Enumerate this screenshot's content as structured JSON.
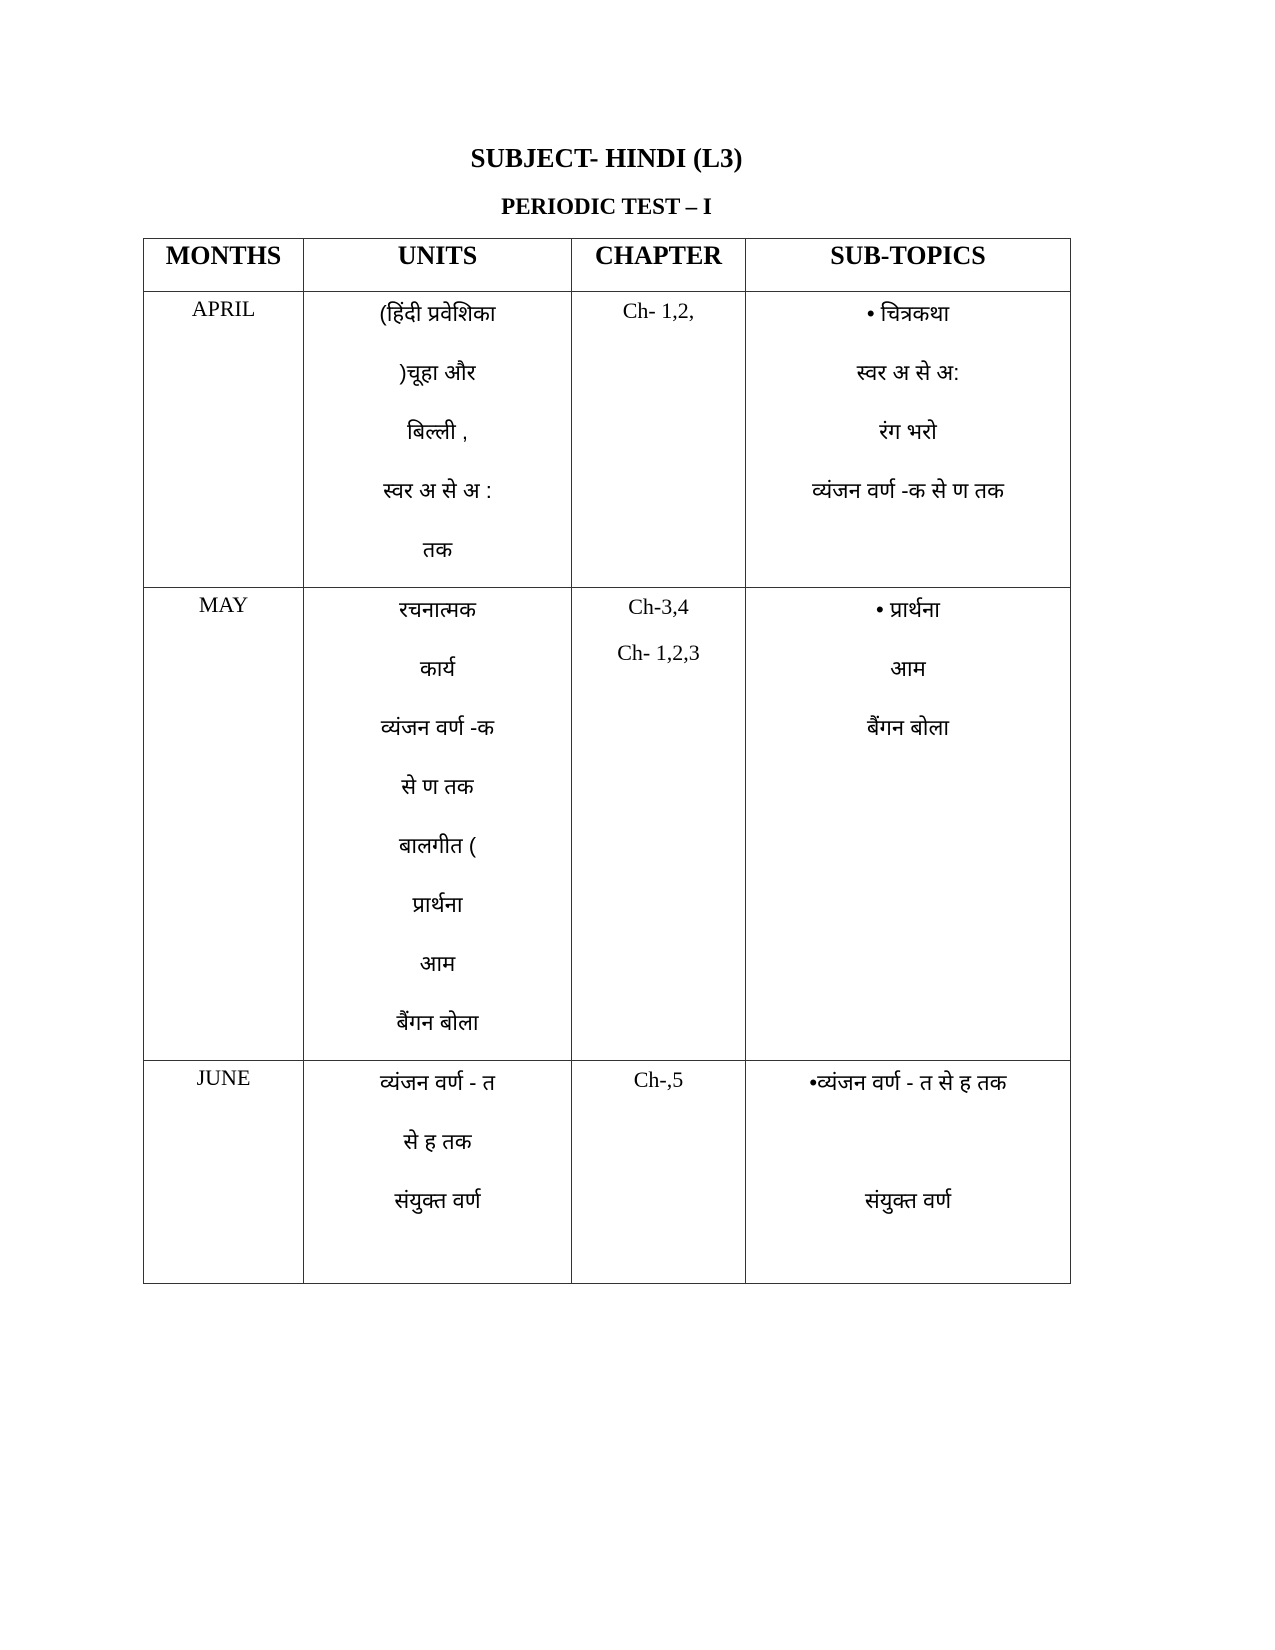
{
  "title": "SUBJECT- HINDI (L3)",
  "subtitle": "PERIODIC TEST – I",
  "headers": [
    "MONTHS",
    "UNITS",
    "CHAPTER",
    "SUB-TOPICS"
  ],
  "rows": [
    {
      "month": "APRIL",
      "units": [
        "(हिंदी प्रवेशिका",
        ")चूहा और",
        "बिल्ली ,",
        "स्वर अ से अ :",
        "तक"
      ],
      "chapter": [
        "Ch- 1,2,"
      ],
      "subtopics": [
        "• चित्रकथा",
        "स्वर अ से अ:",
        "रंग भरो",
        "व्यंजन वर्ण -क से ण तक"
      ]
    },
    {
      "month": "MAY",
      "units": [
        "रचनात्मक",
        "कार्य",
        "व्यंजन वर्ण -क",
        "से ण तक",
        "बालगीत (",
        "प्रार्थना",
        "आम",
        "बैंगन बोला"
      ],
      "chapter": [
        "Ch-3,4",
        "Ch- 1,2,3"
      ],
      "subtopics": [
        "• प्रार्थना",
        "आम",
        "बैंगन बोला"
      ]
    },
    {
      "month": "JUNE",
      "units": [
        "व्यंजन वर्ण - त",
        "से ह तक",
        "संयुक्त वर्ण"
      ],
      "chapter": [
        "Ch-,5"
      ],
      "subtopics": [
        "•व्यंजन वर्ण - त से ह तक",
        "",
        "संयुक्त वर्ण"
      ]
    }
  ]
}
